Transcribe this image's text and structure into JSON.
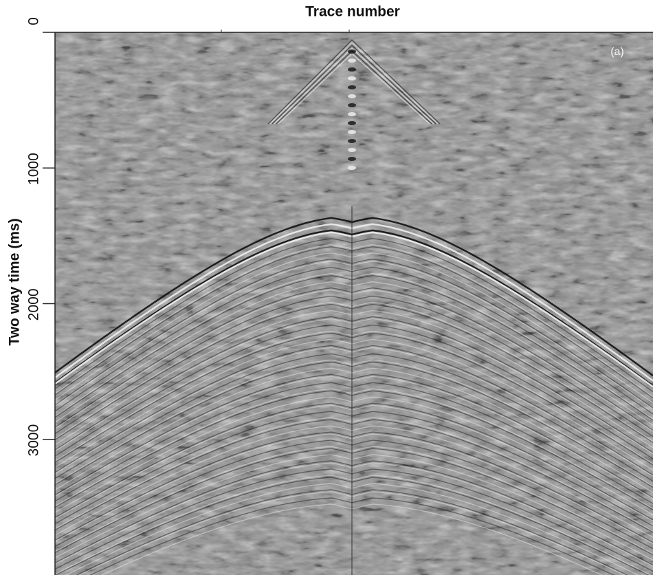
{
  "chart_data": {
    "type": "image",
    "title": "Trace number",
    "y_label": "Two way time (ms)",
    "annotation": "(a)",
    "ylim": [
      0,
      4000
    ],
    "yticks": [
      0,
      1000,
      2000,
      3000
    ]
  }
}
